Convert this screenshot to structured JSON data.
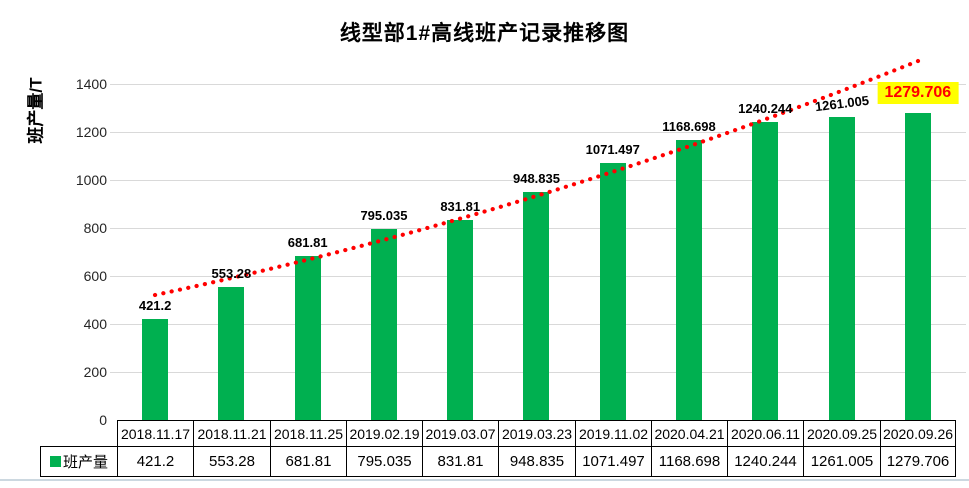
{
  "title": "线型部1#高线班产记录推移图",
  "y_axis_label": "班产量/T",
  "legend_label": "班产量",
  "colors": {
    "bar": "#00B050",
    "trendline": "#FF0000",
    "highlight_bg": "#FFFF00",
    "highlight_text": "#FF0000",
    "gridline": "#D9D9D9",
    "table_border": "#000000"
  },
  "chart_data": {
    "type": "bar",
    "title": "线型部1#高线班产记录推移图",
    "ylabel": "班产量/T",
    "xlabel": "",
    "series_name": "班产量",
    "categories": [
      "2018.11.17",
      "2018.11.21",
      "2018.11.25",
      "2019.02.19",
      "2019.03.07",
      "2019.03.23",
      "2019.11.02",
      "2020.04.21",
      "2020.06.11",
      "2020.09.25",
      "2020.09.26"
    ],
    "values": [
      421.2,
      553.28,
      681.81,
      795.035,
      831.81,
      948.835,
      1071.497,
      1168.698,
      1240.244,
      1261.005,
      1279.706
    ],
    "values_text": [
      "421.2",
      "553.28",
      "681.81",
      "795.035",
      "831.81",
      "948.835",
      "1071.497",
      "1168.698",
      "1240.244",
      "1261.005",
      "1279.706"
    ],
    "ylim": [
      0,
      1400
    ],
    "yticks": [
      0,
      200,
      400,
      600,
      800,
      1000,
      1200,
      1400
    ],
    "grid": true,
    "legend_position": "bottom-table-left",
    "data_labels": true,
    "highlighted_index": 10,
    "trendline": {
      "type": "exponential-trend",
      "style": "dotted",
      "color": "#FF0000"
    }
  }
}
